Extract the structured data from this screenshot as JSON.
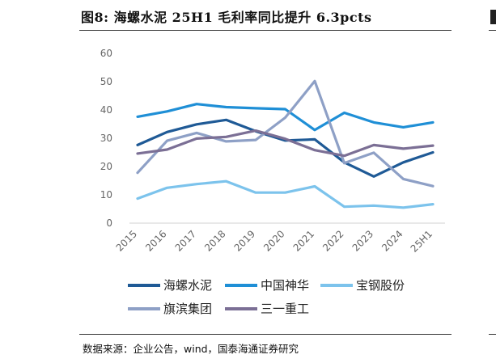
{
  "title": "图8:  海螺水泥 25H1 毛利率同比提升 6.3pcts",
  "source": "数据来源：企业公告，wind，国泰海通证券研究",
  "chart_data": {
    "type": "line",
    "title": "图8:  海螺水泥 25H1 毛利率同比提升 6.3pcts",
    "xlabel": "",
    "ylabel": "",
    "categories": [
      "2015",
      "2016",
      "2017",
      "2018",
      "2019",
      "2020",
      "2021",
      "2022",
      "2023",
      "2024",
      "25H1"
    ],
    "ylim": [
      0,
      60
    ],
    "yticks": [
      0,
      10,
      20,
      30,
      40,
      50,
      60
    ],
    "grid": false,
    "legend_position": "bottom",
    "series": [
      {
        "name": "海螺水泥",
        "color": "#1f5a96",
        "values": [
          27.6,
          32.2,
          34.9,
          36.5,
          32.5,
          29.2,
          29.6,
          21.5,
          16.5,
          21.5,
          25.0
        ]
      },
      {
        "name": "中国神华",
        "color": "#1f8fd6",
        "values": [
          37.6,
          39.5,
          42.1,
          41.0,
          40.6,
          40.3,
          32.9,
          39.0,
          35.6,
          33.9,
          35.6
        ]
      },
      {
        "name": "宝钢股份",
        "color": "#7cc3ec",
        "values": [
          8.7,
          12.5,
          13.8,
          14.8,
          10.8,
          10.8,
          13.0,
          5.8,
          6.2,
          5.5,
          6.7
        ]
      },
      {
        "name": "旗滨集团",
        "color": "#8ea0c6",
        "values": [
          17.8,
          29.1,
          31.9,
          28.9,
          29.4,
          37.3,
          50.2,
          21.2,
          24.9,
          15.6,
          13.1
        ]
      },
      {
        "name": "三一重工",
        "color": "#7b6f95",
        "values": [
          24.6,
          26.0,
          29.9,
          30.5,
          32.7,
          29.8,
          25.8,
          23.8,
          27.6,
          26.3,
          27.4
        ]
      }
    ]
  }
}
